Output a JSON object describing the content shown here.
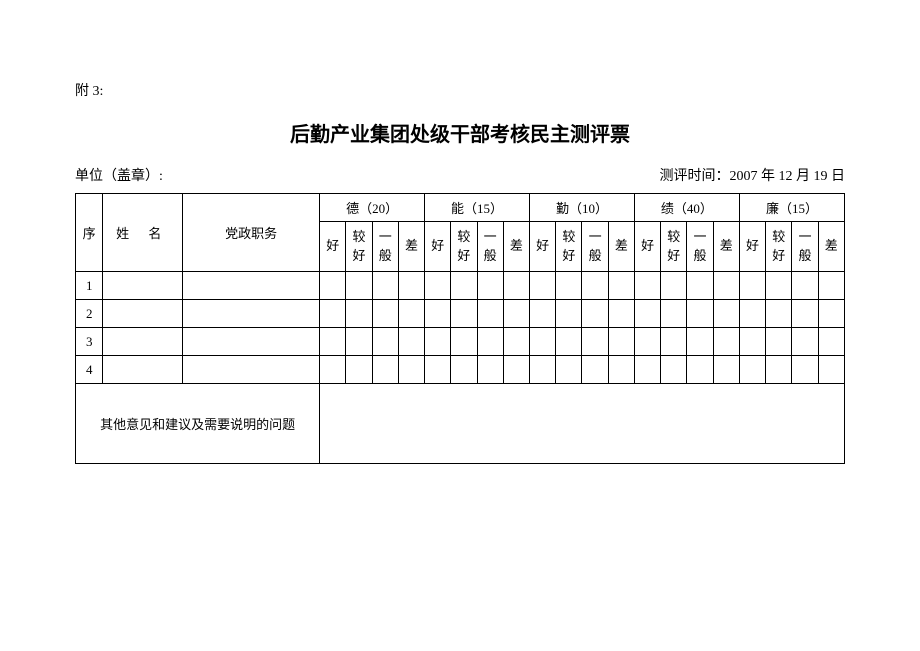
{
  "attachment": "附 3:",
  "title": "后勤产业集团处级干部考核民主测评票",
  "unitLabel": "单位（盖章）:",
  "dateLabel": "测评时间：2007 年 12 月 19 日",
  "headers": {
    "seq": "序",
    "name": "姓  名",
    "position": "党政职务",
    "categories": [
      {
        "label": "德（20）"
      },
      {
        "label": "能（15）"
      },
      {
        "label": "勤（10）"
      },
      {
        "label": "绩（40）"
      },
      {
        "label": "廉（15）"
      }
    ],
    "ratings": [
      "好",
      "较好",
      "一般",
      "差"
    ]
  },
  "rows": [
    "1",
    "2",
    "3",
    "4"
  ],
  "footerLabel": "其他意见和建议及需要说明的问题",
  "colors": {
    "background": "#ffffff",
    "border": "#000000",
    "text": "#000000"
  }
}
